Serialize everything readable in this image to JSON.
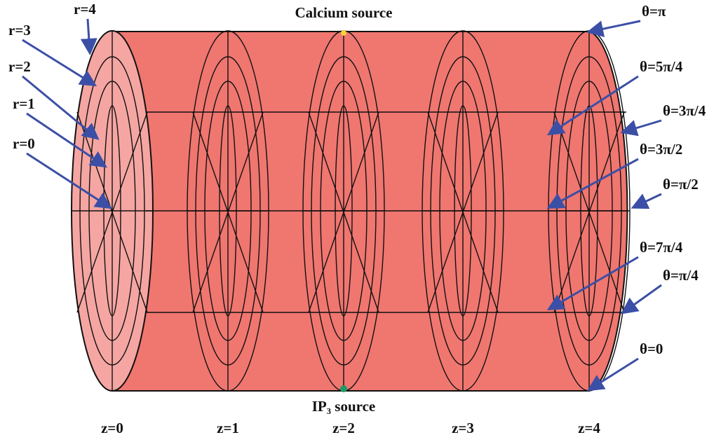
{
  "sources": {
    "calcium": "Calcium source",
    "ip3": "IP₃ source"
  },
  "radial_labels": [
    "r=4",
    "r=3",
    "r=2",
    "r=1",
    "r=0"
  ],
  "angle_labels": [
    "θ=π",
    "θ=5π/4",
    "θ=3π/4",
    "θ=3π/2",
    "θ=π/2",
    "θ=7π/4",
    "θ=π/4",
    "θ=0"
  ],
  "axial_labels": [
    "z=0",
    "z=1",
    "z=2",
    "z=3",
    "z=4"
  ]
}
